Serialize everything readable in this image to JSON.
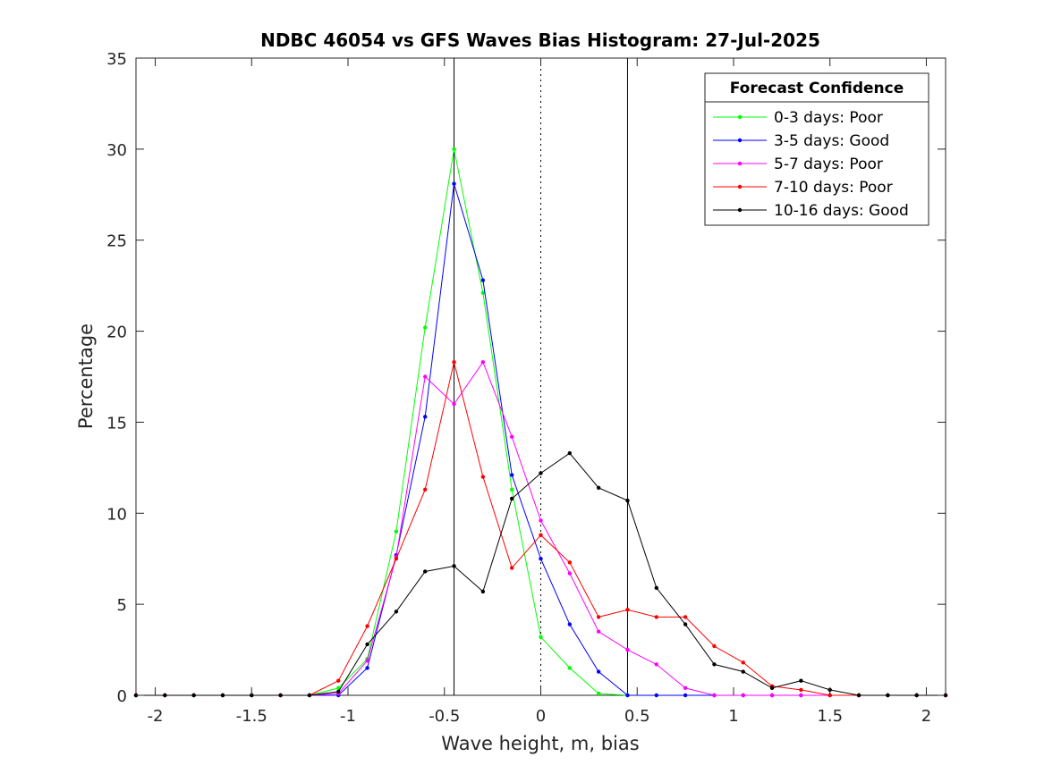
{
  "chart_data": {
    "type": "line",
    "title": "NDBC 46054 vs GFS Waves Bias Histogram: 27-Jul-2025",
    "xlabel": "Wave height, m, bias",
    "ylabel": "Percentage",
    "xlim": [
      -2.1,
      2.1
    ],
    "ylim": [
      0,
      35
    ],
    "xticks": [
      -2,
      -1.5,
      -1,
      -0.5,
      0,
      0.5,
      1,
      1.5,
      2
    ],
    "xtick_labels": [
      "-2",
      "-1.5",
      "-1",
      "-0.5",
      "0",
      "0.5",
      "1",
      "1.5",
      "2"
    ],
    "yticks": [
      0,
      5,
      10,
      15,
      20,
      25,
      30,
      35
    ],
    "ytick_labels": [
      "0",
      "5",
      "10",
      "15",
      "20",
      "25",
      "30",
      "35"
    ],
    "grid": false,
    "legend": {
      "title": "Forecast Confidence",
      "placement": "top-right"
    },
    "reference_lines": [
      {
        "x": -0.45,
        "style": "solid",
        "color": "#000000"
      },
      {
        "x": 0,
        "style": "dotted",
        "color": "#000000"
      },
      {
        "x": 0.45,
        "style": "solid",
        "color": "#000000"
      }
    ],
    "x": [
      -2.1,
      -1.95,
      -1.8,
      -1.65,
      -1.5,
      -1.35,
      -1.2,
      -1.05,
      -0.9,
      -0.75,
      -0.6,
      -0.45,
      -0.3,
      -0.15,
      0,
      0.15,
      0.3,
      0.45,
      0.6,
      0.75,
      0.9,
      1.05,
      1.2,
      1.35,
      1.5,
      1.65,
      1.8,
      1.95,
      2.1
    ],
    "series": [
      {
        "name": "0-3 days: Poor",
        "color": "#00ff00",
        "values": [
          0,
          0,
          0,
          0,
          0,
          0,
          0,
          0.4,
          2.0,
          9.0,
          20.2,
          30.0,
          22.1,
          11.3,
          3.2,
          1.5,
          0.1,
          0,
          0,
          0,
          0,
          0,
          0,
          0,
          0,
          0,
          0,
          0,
          0
        ]
      },
      {
        "name": "3-5 days: Good",
        "color": "#0000ff",
        "values": [
          0,
          0,
          0,
          0,
          0,
          0,
          0,
          0,
          1.5,
          7.7,
          15.3,
          28.1,
          22.8,
          12.1,
          7.5,
          3.9,
          1.3,
          0,
          0,
          0,
          0,
          0,
          0,
          0,
          0,
          0,
          0,
          0,
          0
        ]
      },
      {
        "name": "5-7 days: Poor",
        "color": "#ff00ff",
        "values": [
          0,
          0,
          0,
          0,
          0,
          0,
          0,
          0.1,
          1.9,
          7.6,
          17.5,
          16.0,
          18.3,
          14.2,
          9.6,
          6.7,
          3.5,
          2.5,
          1.7,
          0.4,
          0,
          0,
          0,
          0,
          0,
          0,
          0,
          0,
          0
        ]
      },
      {
        "name": "7-10 days: Poor",
        "color": "#ff0000",
        "values": [
          0,
          0,
          0,
          0,
          0,
          0,
          0,
          0.8,
          3.8,
          7.5,
          11.3,
          18.3,
          12.0,
          7.0,
          8.8,
          7.3,
          4.3,
          4.7,
          4.3,
          4.3,
          2.7,
          1.8,
          0.5,
          0.3,
          0,
          0,
          0,
          0,
          0
        ]
      },
      {
        "name": "10-16 days: Good",
        "color": "#000000",
        "values": [
          0,
          0,
          0,
          0,
          0,
          0,
          0,
          0.2,
          2.8,
          4.6,
          6.8,
          7.1,
          5.7,
          10.8,
          12.2,
          13.3,
          11.4,
          10.7,
          5.9,
          3.9,
          1.7,
          1.3,
          0.4,
          0.8,
          0.3,
          0,
          0,
          0,
          0
        ]
      }
    ]
  }
}
